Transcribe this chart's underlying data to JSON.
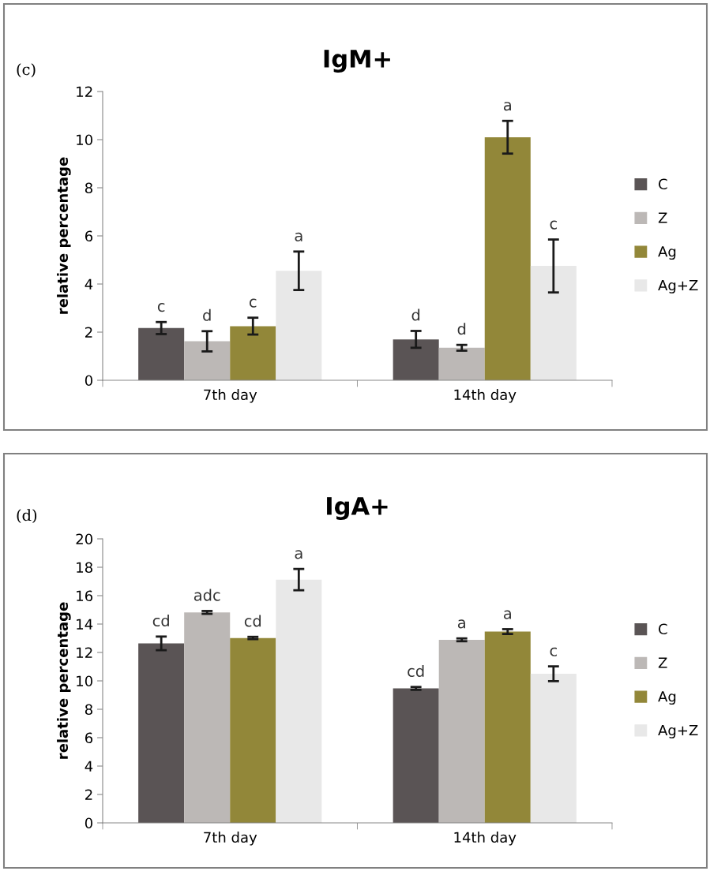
{
  "chart_data": [
    {
      "type": "bar",
      "title": "IgM+",
      "ylabel": "relative percentage",
      "annotations": [
        "(c)"
      ],
      "categories": [
        "7th day",
        "14th day"
      ],
      "ylim": [
        0,
        12
      ],
      "yticks": [
        0,
        2,
        4,
        6,
        8,
        10,
        12
      ],
      "grid": false,
      "legend": "right",
      "series": [
        {
          "name": "C",
          "color": "#5a5455",
          "values": [
            2.17,
            1.7
          ],
          "errors": [
            0.25,
            0.35
          ],
          "value_labels": [
            "c",
            "d"
          ]
        },
        {
          "name": "Z",
          "color": "#bcb8b6",
          "values": [
            1.62,
            1.35
          ],
          "errors": [
            0.42,
            0.12
          ],
          "value_labels": [
            "d",
            "d"
          ]
        },
        {
          "name": "Ag",
          "color": "#928739",
          "values": [
            2.25,
            10.1
          ],
          "errors": [
            0.35,
            0.68
          ],
          "value_labels": [
            "c",
            "a"
          ]
        },
        {
          "name": "Ag+Z",
          "color": "#e8e8e8",
          "values": [
            4.55,
            4.75
          ],
          "errors": [
            0.8,
            1.1
          ],
          "value_labels": [
            "a",
            "c"
          ]
        }
      ]
    },
    {
      "type": "bar",
      "title": "IgA+",
      "ylabel": "relative percentage",
      "annotations": [
        "(d)"
      ],
      "categories": [
        "7th day",
        "14th day"
      ],
      "ylim": [
        0,
        20
      ],
      "yticks": [
        0,
        2,
        4,
        6,
        8,
        10,
        12,
        14,
        16,
        18,
        20
      ],
      "grid": false,
      "legend": "right",
      "series": [
        {
          "name": "C",
          "color": "#5a5455",
          "values": [
            12.64,
            9.47
          ],
          "errors": [
            0.48,
            0.1
          ],
          "value_labels": [
            "cd",
            "cd"
          ]
        },
        {
          "name": "Z",
          "color": "#bcb8b6",
          "values": [
            14.82,
            12.89
          ],
          "errors": [
            0.1,
            0.1
          ],
          "value_labels": [
            "adc",
            "a"
          ]
        },
        {
          "name": "Ag",
          "color": "#928739",
          "values": [
            13.02,
            13.47
          ],
          "errors": [
            0.08,
            0.17
          ],
          "value_labels": [
            "cd",
            "a"
          ]
        },
        {
          "name": "Ag+Z",
          "color": "#e8e8e8",
          "values": [
            17.13,
            10.5
          ],
          "errors": [
            0.75,
            0.52
          ],
          "value_labels": [
            "a",
            "c"
          ]
        }
      ]
    }
  ]
}
